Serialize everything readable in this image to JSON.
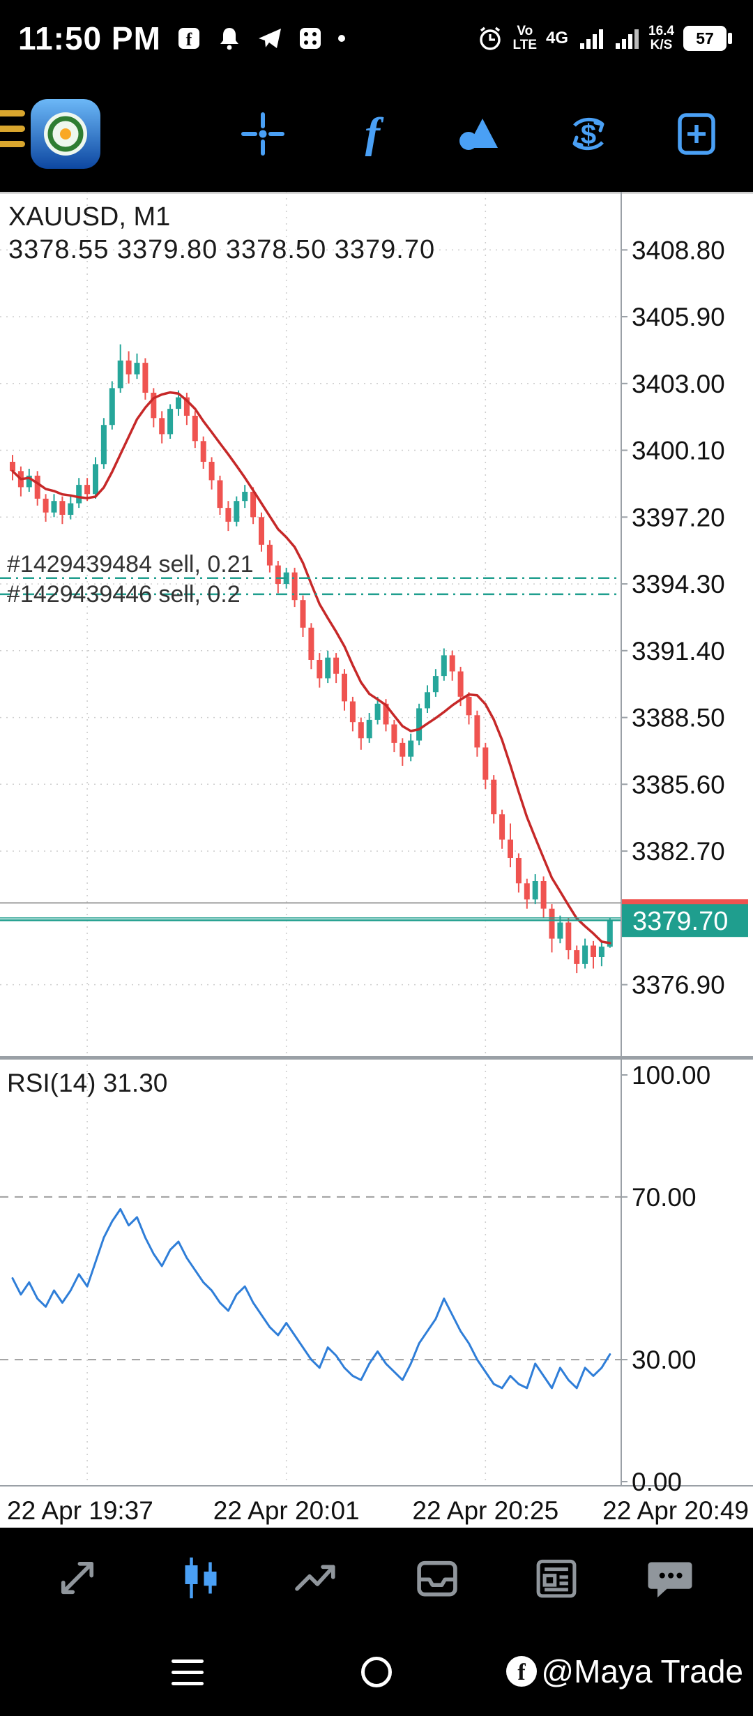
{
  "status_bar": {
    "time": "11:50 PM",
    "volte_top": "Vo",
    "volte_bottom": "LTE",
    "network_type": "4G",
    "net_speed_value": "16.4",
    "net_speed_unit": "K/S",
    "battery_percent": "57"
  },
  "toolbar": {
    "icons": [
      "menu",
      "app-logo",
      "crosshair",
      "indicators",
      "objects",
      "trade-dollar",
      "new-order"
    ]
  },
  "colors": {
    "up": "#26a69a",
    "down": "#ef5350",
    "ma": "#c62828",
    "rsi": "#2f7ed8",
    "position": "#1f9e8e",
    "price_tag": "#1f9e8e",
    "grid": "#cdcdcd",
    "levels": "#9e9e9e",
    "gray_line": "#9e9e9e",
    "axis_text": "#111111",
    "label_text": "#333333",
    "panel_border": "#9aa0a6",
    "icon_blue": "#4aa0f5",
    "nav_gray": "#90969c"
  },
  "chart_data": {
    "type": "candlestick",
    "symbol": "XAUUSD",
    "timeframe": "M1",
    "title": "XAUUSD, M1",
    "ohlc_line": "3378.55 3379.80 3378.50 3379.70",
    "current_price": 3379.7,
    "ask_price": 3379.8,
    "gray_line_price": 3380.45,
    "positions": [
      {
        "label": "#1429439484 sell, 0.21",
        "price": 3394.55
      },
      {
        "label": "#1429439446 sell, 0.2",
        "price": 3393.85
      }
    ],
    "price_axis": {
      "ylim": [
        3373.8,
        3411.2
      ],
      "ticks": [
        3408.8,
        3405.9,
        3403.0,
        3400.1,
        3397.2,
        3394.3,
        3391.4,
        3388.5,
        3385.6,
        3382.7,
        3376.9
      ]
    },
    "ma": {
      "period": 8,
      "color": "#c62828"
    },
    "candles": [
      [
        3399.6,
        3399.9,
        3398.8,
        3399.2
      ],
      [
        3399.2,
        3399.4,
        3398.1,
        3398.5
      ],
      [
        3398.5,
        3399.3,
        3398.3,
        3399.0
      ],
      [
        3399.0,
        3399.2,
        3397.7,
        3398.0
      ],
      [
        3398.0,
        3398.2,
        3397.0,
        3397.4
      ],
      [
        3397.4,
        3398.2,
        3397.2,
        3397.9
      ],
      [
        3397.9,
        3398.1,
        3396.9,
        3397.3
      ],
      [
        3397.3,
        3398.1,
        3397.1,
        3397.8
      ],
      [
        3397.8,
        3398.9,
        3397.6,
        3398.6
      ],
      [
        3398.6,
        3398.9,
        3397.9,
        3398.2
      ],
      [
        3398.2,
        3399.8,
        3398.0,
        3399.5
      ],
      [
        3399.5,
        3401.5,
        3399.3,
        3401.2
      ],
      [
        3401.2,
        3403.1,
        3401.0,
        3402.8
      ],
      [
        3402.8,
        3404.7,
        3402.6,
        3404.0
      ],
      [
        3404.0,
        3404.4,
        3403.0,
        3403.4
      ],
      [
        3403.4,
        3404.3,
        3403.2,
        3403.9
      ],
      [
        3403.9,
        3404.1,
        3402.3,
        3402.6
      ],
      [
        3402.6,
        3402.8,
        3401.1,
        3401.5
      ],
      [
        3401.5,
        3401.8,
        3400.4,
        3400.8
      ],
      [
        3400.8,
        3402.1,
        3400.6,
        3401.9
      ],
      [
        3401.9,
        3402.7,
        3401.6,
        3402.4
      ],
      [
        3402.4,
        3402.6,
        3401.2,
        3401.6
      ],
      [
        3401.6,
        3401.8,
        3400.2,
        3400.5
      ],
      [
        3400.5,
        3400.7,
        3399.3,
        3399.6
      ],
      [
        3399.6,
        3399.8,
        3398.4,
        3398.8
      ],
      [
        3398.8,
        3399.0,
        3397.3,
        3397.6
      ],
      [
        3397.6,
        3397.9,
        3396.6,
        3397.0
      ],
      [
        3397.0,
        3398.1,
        3396.8,
        3397.9
      ],
      [
        3397.9,
        3398.6,
        3397.6,
        3398.3
      ],
      [
        3398.3,
        3398.5,
        3396.9,
        3397.2
      ],
      [
        3397.2,
        3397.4,
        3395.7,
        3396.0
      ],
      [
        3396.0,
        3396.2,
        3394.8,
        3395.1
      ],
      [
        3395.1,
        3395.3,
        3393.9,
        3394.3
      ],
      [
        3394.3,
        3395.0,
        3394.1,
        3394.8
      ],
      [
        3394.8,
        3395.0,
        3393.3,
        3393.6
      ],
      [
        3393.6,
        3393.8,
        3392.0,
        3392.4
      ],
      [
        3392.4,
        3392.6,
        3390.6,
        3391.0
      ],
      [
        3391.0,
        3391.3,
        3389.8,
        3390.2
      ],
      [
        3390.2,
        3391.4,
        3390.0,
        3391.1
      ],
      [
        3391.1,
        3391.3,
        3390.0,
        3390.4
      ],
      [
        3390.4,
        3390.6,
        3388.8,
        3389.2
      ],
      [
        3389.2,
        3389.4,
        3387.9,
        3388.3
      ],
      [
        3388.3,
        3388.5,
        3387.1,
        3387.6
      ],
      [
        3387.6,
        3388.7,
        3387.4,
        3388.4
      ],
      [
        3388.4,
        3389.4,
        3388.2,
        3389.1
      ],
      [
        3389.1,
        3389.3,
        3387.9,
        3388.2
      ],
      [
        3388.2,
        3388.4,
        3387.0,
        3387.4
      ],
      [
        3387.4,
        3387.6,
        3386.4,
        3386.8
      ],
      [
        3386.8,
        3387.8,
        3386.6,
        3387.5
      ],
      [
        3387.5,
        3389.1,
        3387.3,
        3388.9
      ],
      [
        3388.9,
        3389.9,
        3388.7,
        3389.6
      ],
      [
        3389.6,
        3390.6,
        3389.4,
        3390.3
      ],
      [
        3390.3,
        3391.5,
        3390.1,
        3391.2
      ],
      [
        3391.2,
        3391.4,
        3390.1,
        3390.5
      ],
      [
        3390.5,
        3390.7,
        3389.0,
        3389.4
      ],
      [
        3389.4,
        3389.6,
        3388.2,
        3388.6
      ],
      [
        3388.6,
        3388.8,
        3386.8,
        3387.2
      ],
      [
        3387.2,
        3387.4,
        3385.4,
        3385.8
      ],
      [
        3385.8,
        3386.0,
        3383.9,
        3384.3
      ],
      [
        3384.3,
        3384.5,
        3382.8,
        3383.2
      ],
      [
        3383.2,
        3383.9,
        3382.0,
        3382.4
      ],
      [
        3382.4,
        3382.6,
        3380.9,
        3381.3
      ],
      [
        3381.3,
        3381.5,
        3380.2,
        3380.6
      ],
      [
        3380.6,
        3381.7,
        3380.4,
        3381.4
      ],
      [
        3381.4,
        3381.6,
        3379.8,
        3380.2
      ],
      [
        3380.2,
        3380.4,
        3378.3,
        3378.9
      ],
      [
        3378.9,
        3379.9,
        3378.7,
        3379.6
      ],
      [
        3379.6,
        3379.8,
        3378.0,
        3378.4
      ],
      [
        3378.4,
        3378.6,
        3377.4,
        3377.8
      ],
      [
        3377.8,
        3378.9,
        3377.6,
        3378.6
      ],
      [
        3378.6,
        3378.8,
        3377.6,
        3378.1
      ],
      [
        3378.1,
        3378.8,
        3377.7,
        3378.55
      ],
      [
        3378.55,
        3379.8,
        3378.5,
        3379.7
      ]
    ],
    "rsi": {
      "label": "RSI(14) 31.30",
      "period": 14,
      "value": 31.3,
      "ylim": [
        0,
        100
      ],
      "levels": [
        70,
        30
      ],
      "ticks": [
        100,
        70,
        30,
        0
      ],
      "values": [
        50,
        46,
        49,
        45,
        43,
        47,
        44,
        47,
        51,
        48,
        54,
        60,
        64,
        67,
        63,
        65,
        60,
        56,
        53,
        57,
        59,
        55,
        52,
        49,
        47,
        44,
        42,
        46,
        48,
        44,
        41,
        38,
        36,
        39,
        36,
        33,
        30,
        28,
        33,
        31,
        28,
        26,
        25,
        29,
        32,
        29,
        27,
        25,
        29,
        34,
        37,
        40,
        45,
        41,
        37,
        34,
        30,
        27,
        24,
        23,
        26,
        24,
        23,
        29,
        26,
        23,
        28,
        25,
        23,
        28,
        26,
        28,
        31.3
      ]
    },
    "time_axis": {
      "labels": [
        "22 Apr 19:37",
        "22 Apr 20:01",
        "22 Apr 20:25",
        "22 Apr 20:49"
      ],
      "candle_indices": [
        9,
        33,
        57,
        81
      ]
    }
  },
  "bottom_nav": {
    "active": "charts",
    "items": [
      "quotes",
      "charts",
      "trade",
      "history",
      "news",
      "messages"
    ]
  },
  "system_nav": {
    "watermark": "@Maya Trade"
  }
}
